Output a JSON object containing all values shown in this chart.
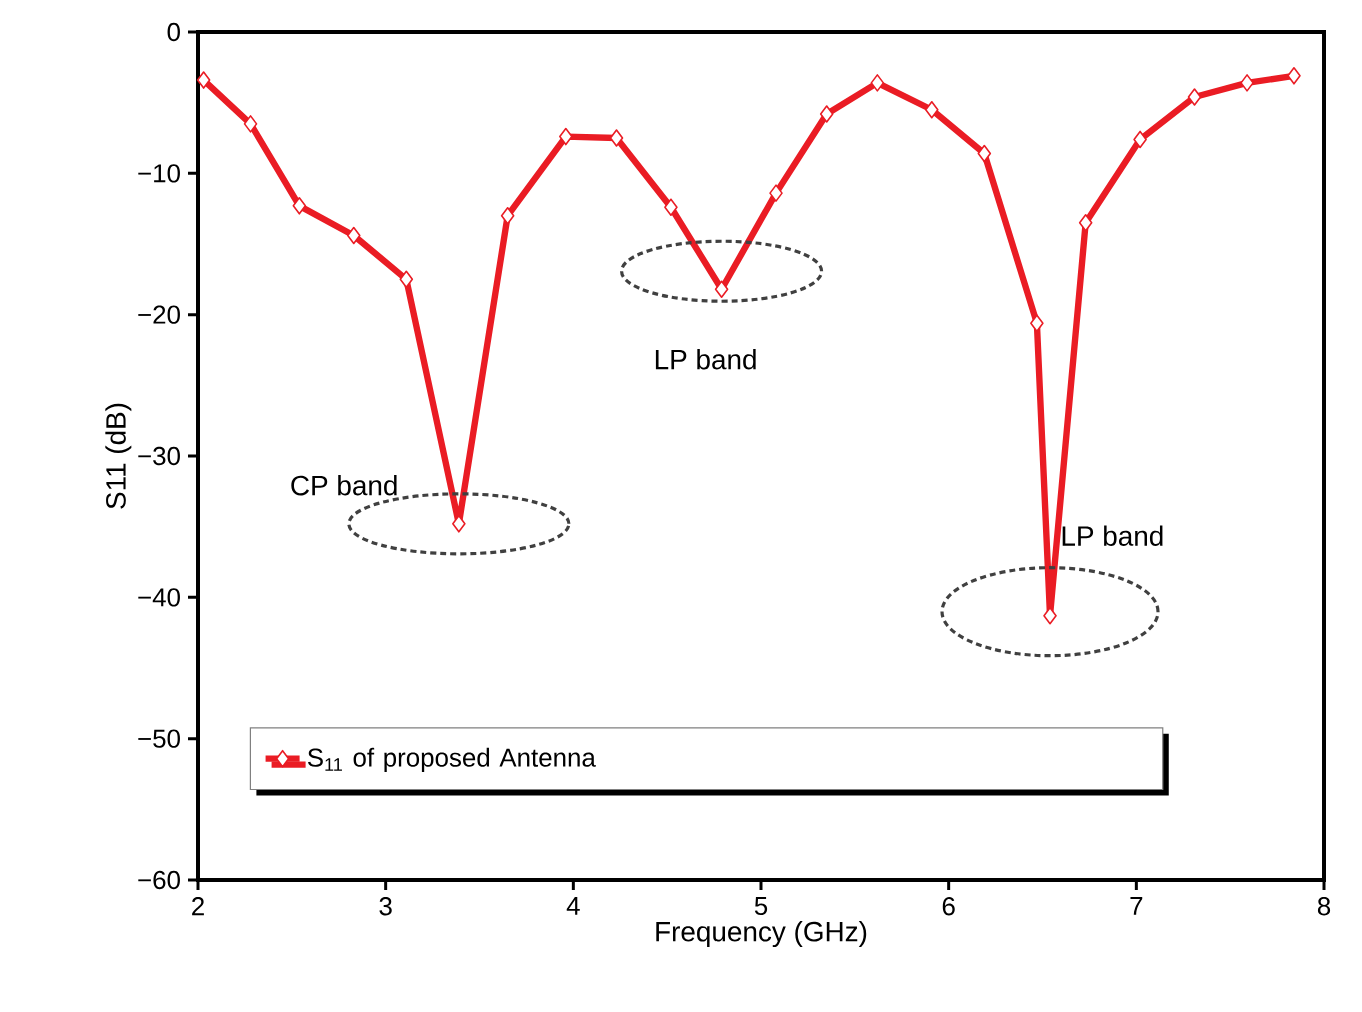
{
  "chart_data": {
    "type": "line",
    "xlabel": "Frequency (GHz)",
    "ylabel": "S11 (dB)",
    "xlim": [
      2,
      8
    ],
    "ylim": [
      -60,
      0
    ],
    "xticks": [
      2,
      3,
      4,
      5,
      6,
      7,
      8
    ],
    "yticks": [
      {
        "value": -60,
        "label": "−60"
      },
      {
        "value": -50,
        "label": "−50"
      },
      {
        "value": -40,
        "label": "−40"
      },
      {
        "value": -30,
        "label": "−30"
      },
      {
        "value": -20,
        "label": "−20"
      },
      {
        "value": -10,
        "label": "−10"
      },
      0
    ],
    "legend": "bottom left",
    "marker": "diamond",
    "line_style": "solid",
    "grid": false,
    "series": [
      {
        "name": "S$_{11}$ of proposed Antenna",
        "color": "#ea1c24",
        "x": [
          2.03,
          2.28,
          2.54,
          2.83,
          3.11,
          3.39,
          3.65,
          3.96,
          4.23,
          4.52,
          4.79,
          5.08,
          5.35,
          5.62,
          5.91,
          6.19,
          6.47,
          6.54,
          6.73,
          7.02,
          7.31,
          7.59,
          7.84
        ],
        "values": [
          -3.4,
          -6.5,
          -12.3,
          -14.4,
          -17.5,
          -34.8,
          -13.0,
          -7.4,
          -7.5,
          -12.4,
          -18.2,
          -11.4,
          -5.8,
          -3.6,
          -5.5,
          -8.6,
          -20.6,
          -41.3,
          -13.5,
          -7.6,
          -4.6,
          -3.6,
          -3.1
        ]
      }
    ],
    "annotations": [
      {
        "text": "CP band",
        "x": 3.39,
        "y": -34.8
      },
      {
        "text": "LP band",
        "x": 4.79,
        "y": -18.2
      },
      {
        "text": "LP band",
        "x": 6.54,
        "y": -41.3
      }
    ]
  }
}
